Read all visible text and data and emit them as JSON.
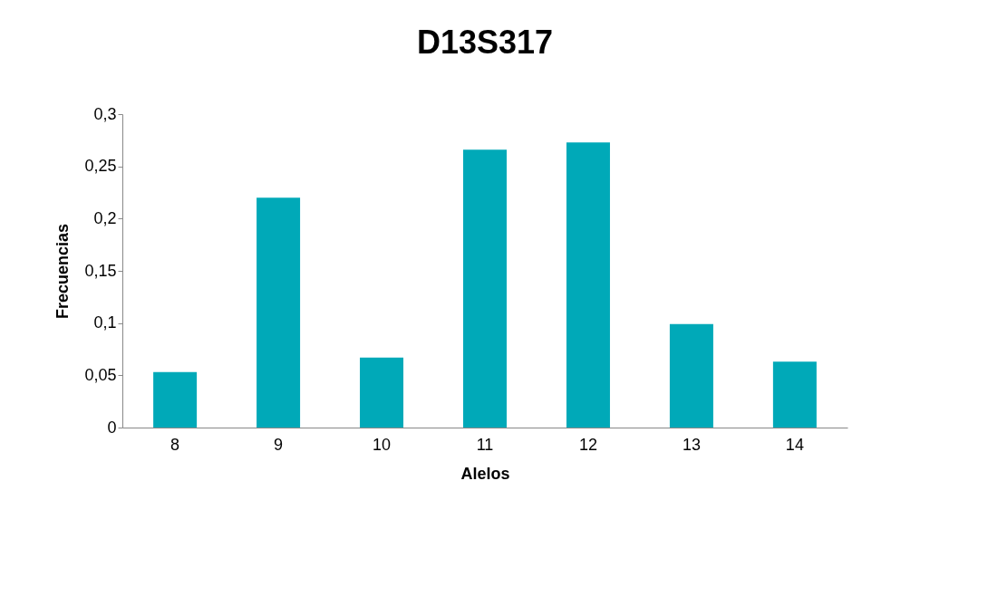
{
  "chart_data": {
    "type": "bar",
    "title": "D13S317",
    "xlabel": "Alelos",
    "ylabel": "Frecuencias",
    "categories": [
      "8",
      "9",
      "10",
      "11",
      "12",
      "13",
      "14"
    ],
    "values": [
      0.053,
      0.22,
      0.067,
      0.266,
      0.273,
      0.099,
      0.063
    ],
    "color": "#00a9b8",
    "ylim": [
      0,
      0.3
    ],
    "yticks": [
      0,
      {
        "value": 0.05,
        "label": "0,05"
      },
      {
        "value": 0.1,
        "label": "0,1"
      },
      {
        "value": 0.15,
        "label": "0,15"
      },
      {
        "value": 0.2,
        "label": "0,2"
      },
      {
        "value": 0.25,
        "label": "0,25"
      },
      {
        "value": 0.3,
        "label": "0,3"
      }
    ],
    "grid": false
  }
}
